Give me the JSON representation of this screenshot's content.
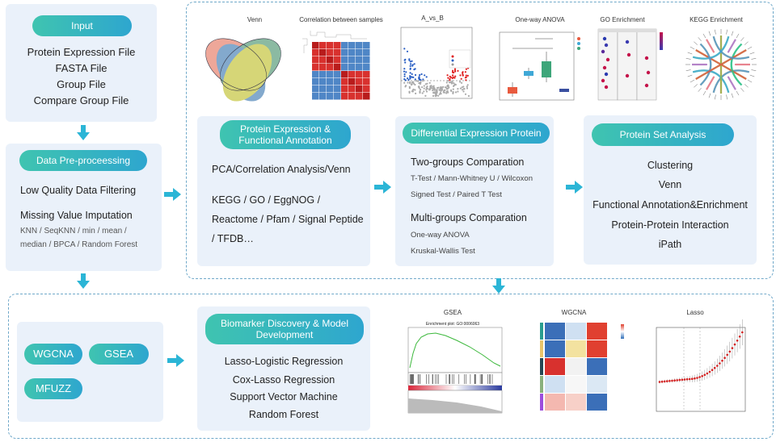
{
  "input": {
    "title": "Input",
    "lines": [
      "Protein Expression File",
      "FASTA File",
      "Group File",
      "Compare Group File"
    ]
  },
  "preprocess": {
    "title": "Data Pre-proceessing",
    "line1": "Low Quality Data Filtering",
    "line2": "Missing Value Imputation",
    "small1": "KNN / SeqKNN / min / mean /",
    "small2": "median /  BPCA / Random Forest"
  },
  "plots_top": [
    "Venn",
    "Correlation between samples",
    "A_vs_B",
    "One-way ANOVA",
    "GO Enrichment",
    "KEGG  Enrichment"
  ],
  "annotation": {
    "title1": "Protein Expression &",
    "title2": "Functional Annotation",
    "line1": "PCA/Correlation Analysis/Venn",
    "line2": "KEGG / GO / EggNOG /",
    "line3": "Reactome / Pfam / Signal Peptide",
    "line4": "/ TFDB…"
  },
  "diff": {
    "title": "Differential Expression Protein",
    "two_title": "Two-groups Comparation",
    "two_small1": "T-Test / Mann-Whitney U / Wilcoxon",
    "two_small2": "Signed Test / Paired T Test",
    "multi_title": "Multi-groups Comparation",
    "multi_small1": "One-way ANOVA",
    "multi_small2": "Kruskal-Wallis Test"
  },
  "protein_set": {
    "title": "Protein Set Analysis",
    "items": [
      "Clustering",
      "Venn",
      "Functional Annotation&Enrichment",
      "Protein-Protein Interaction",
      "iPath"
    ]
  },
  "methods": {
    "wgcna": "WGCNA",
    "gsea": "GSEA",
    "mfuzz": "MFUZZ"
  },
  "biomarker": {
    "title1": "Biomarker Discovery & Model",
    "title2": "Development",
    "items": [
      "Lasso-Logistic Regression",
      "Cox-Lasso Regression",
      "Support Vector Machine",
      "Random Forest"
    ]
  },
  "plots_bottom": [
    "GSEA",
    "WGCNA",
    "Lasso"
  ],
  "gsea_plot_title": "Enrichment plot: GO:0006063",
  "colors": {
    "pill_start": "#3fc4b0",
    "pill_end": "#2ea6cf",
    "panel_bg": "#eaf1fa",
    "arrow": "#2bb5d6",
    "dash": "#6fa8c9"
  }
}
